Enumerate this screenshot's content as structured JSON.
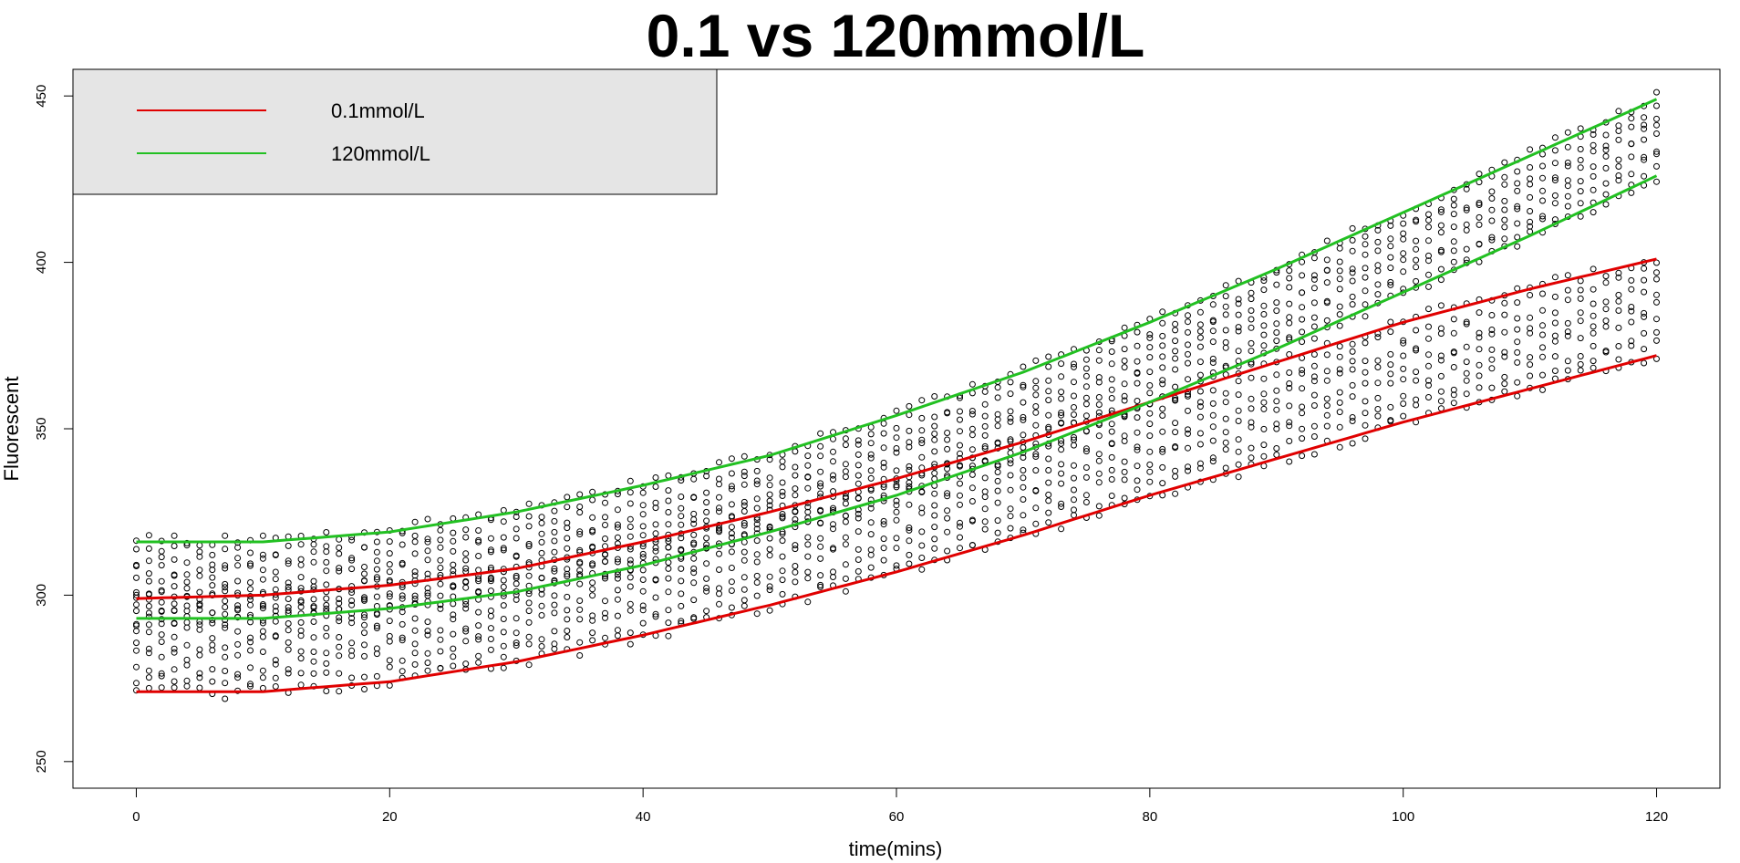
{
  "chart_data": {
    "type": "scatter",
    "title": "0.1 vs 120mmol/L",
    "xlabel": "time(mins)",
    "ylabel": "Fluorescent",
    "xlim": [
      -5,
      125
    ],
    "ylim": [
      242,
      458
    ],
    "xticks": [
      0,
      20,
      40,
      60,
      80,
      100,
      120
    ],
    "yticks": [
      250,
      300,
      350,
      400,
      450
    ],
    "grid": false,
    "legend_position": "top-left",
    "point_color": "#000000",
    "series": [
      {
        "name": "0.1mmol/L",
        "color": "#e00000",
        "bands": [
          {
            "x": [
              0,
              10,
              20,
              30,
              40,
              50,
              60,
              70,
              80,
              90,
              100,
              110,
              120
            ],
            "y": [
              299,
              300,
              303,
              308,
              316,
              325,
              335,
              346,
              358,
              370,
              382,
              392,
              401
            ]
          },
          {
            "x": [
              0,
              10,
              20,
              30,
              40,
              50,
              60,
              70,
              80,
              90,
              100,
              110,
              120
            ],
            "y": [
              271,
              271,
              274,
              280,
              288,
              297,
              307,
              318,
              330,
              341,
              352,
              362,
              372
            ]
          }
        ]
      },
      {
        "name": "120mmol/L",
        "color": "#22c022",
        "bands": [
          {
            "x": [
              0,
              10,
              20,
              30,
              40,
              50,
              60,
              70,
              80,
              90,
              100,
              110,
              120
            ],
            "y": [
              316,
              316,
              319,
              325,
              333,
              342,
              354,
              367,
              382,
              398,
              415,
              432,
              449
            ]
          },
          {
            "x": [
              0,
              10,
              20,
              30,
              40,
              50,
              60,
              70,
              80,
              90,
              100,
              110,
              120
            ],
            "y": [
              293,
              293,
              296,
              301,
              309,
              319,
              330,
              343,
              358,
              374,
              391,
              408,
              426
            ]
          }
        ]
      }
    ]
  }
}
